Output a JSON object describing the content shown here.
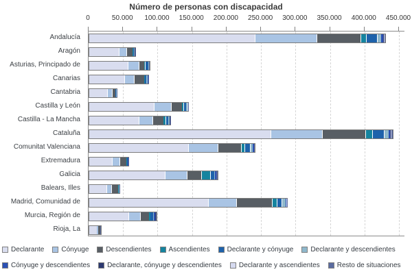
{
  "title": "Número de personas con discapacidad",
  "axis": {
    "ticks": [
      {
        "label": "0",
        "value": 0
      },
      {
        "label": "50.000",
        "value": 50000
      },
      {
        "label": "100.000",
        "value": 100000
      },
      {
        "label": "150.000",
        "value": 150000
      },
      {
        "label": "200.000",
        "value": 200000
      },
      {
        "label": "250.000",
        "value": 250000
      },
      {
        "label": "300.000",
        "value": 300000
      },
      {
        "label": "350.000",
        "value": 350000
      },
      {
        "label": "400.000",
        "value": 400000
      },
      {
        "label": "450.000",
        "value": 450000
      }
    ]
  },
  "colors": {
    "bar_border": "#7c7c7c",
    "axis_line": "#8a8a8a",
    "gridline": "#d6d6d6"
  },
  "chart_data": {
    "type": "bar",
    "orientation": "horizontal",
    "stacked": true,
    "title": "Número de personas con discapacidad",
    "xlabel": "",
    "ylabel": "",
    "xlim": [
      0,
      450000
    ],
    "x_tick_labels": [
      "0",
      "50.000",
      "100.000",
      "150.000",
      "200.000",
      "250.000",
      "300.000",
      "350.000",
      "400.000",
      "450.000"
    ],
    "grid": true,
    "legend_position": "bottom",
    "categories": [
      "Andalucía",
      "Aragón",
      "Asturias, Principado de",
      "Canarias",
      "Cantabria",
      "Castilla y León",
      "Castilla - La Mancha",
      "Cataluña",
      "Comunitat Valenciana",
      "Extremadura",
      "Galicia",
      "Balears, Illes",
      "Madrid, Comunidad de",
      "Murcia, Región de",
      "Rioja, La"
    ],
    "series": [
      {
        "name": "Declarante",
        "color": "#d9ddef",
        "values": [
          240000,
          43000,
          56000,
          50500,
          26000,
          94000,
          72000,
          263000,
          143000,
          32500,
          110000,
          25000,
          172000,
          57000,
          10700
        ]
      },
      {
        "name": "Cónyuge",
        "color": "#a9c4e4",
        "values": [
          90000,
          10500,
          16000,
          14500,
          6700,
          24000,
          20000,
          75000,
          43500,
          11000,
          31500,
          6600,
          41000,
          16700,
          2600
        ]
      },
      {
        "name": "Descendientes",
        "color": "#585e64",
        "values": [
          63000,
          9000,
          8000,
          14500,
          4700,
          16000,
          16000,
          62000,
          33500,
          10000,
          21000,
          10500,
          51500,
          13300,
          2300
        ]
      },
      {
        "name": "Ascendientes",
        "color": "#15849f",
        "values": [
          8500,
          1200,
          1000,
          1500,
          500,
          2500,
          2500,
          10000,
          5300,
          800,
          12300,
          400,
          7600,
          2000,
          150
        ]
      },
      {
        "name": "Declarante y cónyuge",
        "color": "#1e62ab",
        "values": [
          15500,
          1500,
          4500,
          2000,
          1300,
          4300,
          4500,
          17000,
          8000,
          1500,
          6000,
          600,
          6600,
          3300,
          350
        ]
      },
      {
        "name": "Declarante y descendientes",
        "color": "#8fb8cc",
        "values": [
          6500,
          600,
          800,
          1500,
          300,
          1500,
          1500,
          7000,
          4000,
          400,
          1200,
          300,
          6300,
          1500,
          100
        ]
      },
      {
        "name": "Cónyuge y descendientes",
        "color": "#2b51b4",
        "values": [
          3000,
          300,
          400,
          800,
          200,
          400,
          500,
          2500,
          1200,
          200,
          2000,
          200,
          500,
          2200,
          100
        ]
      },
      {
        "name": "Declarante, cónyuge y descendientes",
        "color": "#2c3970",
        "values": [
          1000,
          150,
          150,
          200,
          100,
          150,
          200,
          800,
          300,
          100,
          300,
          100,
          200,
          300,
          50
        ]
      },
      {
        "name": "Declarante y ascendientes",
        "color": "#d6daf0",
        "values": [
          500,
          250,
          150,
          200,
          100,
          150,
          200,
          700,
          200,
          100,
          200,
          100,
          800,
          200,
          50
        ]
      },
      {
        "name": "Resto de situaciones",
        "color": "#5a6b9f",
        "values": [
          1000,
          500,
          1000,
          300,
          100,
          500,
          600,
          2000,
          1000,
          400,
          1500,
          400,
          500,
          1500,
          100
        ]
      }
    ]
  }
}
